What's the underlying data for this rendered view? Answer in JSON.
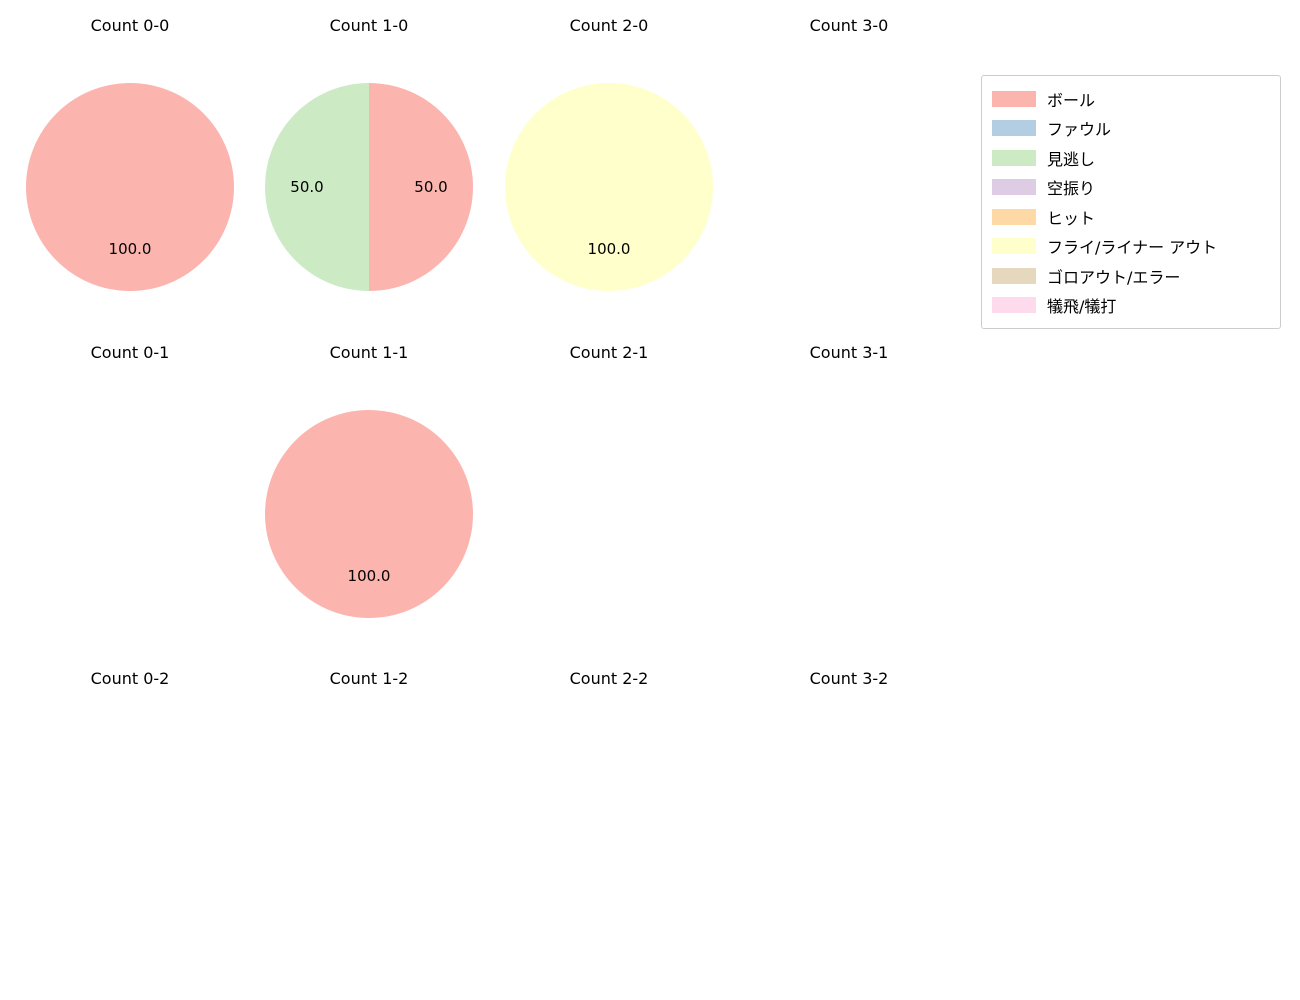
{
  "page": {
    "background": "#ffffff"
  },
  "legend": {
    "entries": [
      {
        "label": "ボール",
        "color": "#fbb4ae"
      },
      {
        "label": "ファウル",
        "color": "#b3cde3"
      },
      {
        "label": "見逃し",
        "color": "#ccebc5"
      },
      {
        "label": "空振り",
        "color": "#decbe4"
      },
      {
        "label": "ヒット",
        "color": "#fed9a6"
      },
      {
        "label": "フライ/ライナー アウト",
        "color": "#ffffcc"
      },
      {
        "label": "ゴロアウト/エラー",
        "color": "#e5d8bd"
      },
      {
        "label": "犠飛/犠打",
        "color": "#fddaec"
      }
    ]
  },
  "chart_data": {
    "type": "pie",
    "grid": {
      "rows": 3,
      "cols": 4
    },
    "value_format": "one_decimal",
    "legend_position": "upper right",
    "charts": [
      {
        "title": "Count 0-0",
        "slices": [
          {
            "label": "ボール",
            "value": 100.0
          }
        ]
      },
      {
        "title": "Count 1-0",
        "slices": [
          {
            "label": "ボール",
            "value": 50.0
          },
          {
            "label": "見逃し",
            "value": 50.0
          }
        ]
      },
      {
        "title": "Count 2-0",
        "slices": [
          {
            "label": "フライ/ライナー アウト",
            "value": 100.0
          }
        ]
      },
      {
        "title": "Count 3-0",
        "slices": []
      },
      {
        "title": "Count 0-1",
        "slices": []
      },
      {
        "title": "Count 1-1",
        "slices": [
          {
            "label": "ボール",
            "value": 100.0
          }
        ]
      },
      {
        "title": "Count 2-1",
        "slices": []
      },
      {
        "title": "Count 3-1",
        "slices": []
      },
      {
        "title": "Count 0-2",
        "slices": []
      },
      {
        "title": "Count 1-2",
        "slices": []
      },
      {
        "title": "Count 2-2",
        "slices": []
      },
      {
        "title": "Count 3-2",
        "slices": []
      }
    ]
  }
}
